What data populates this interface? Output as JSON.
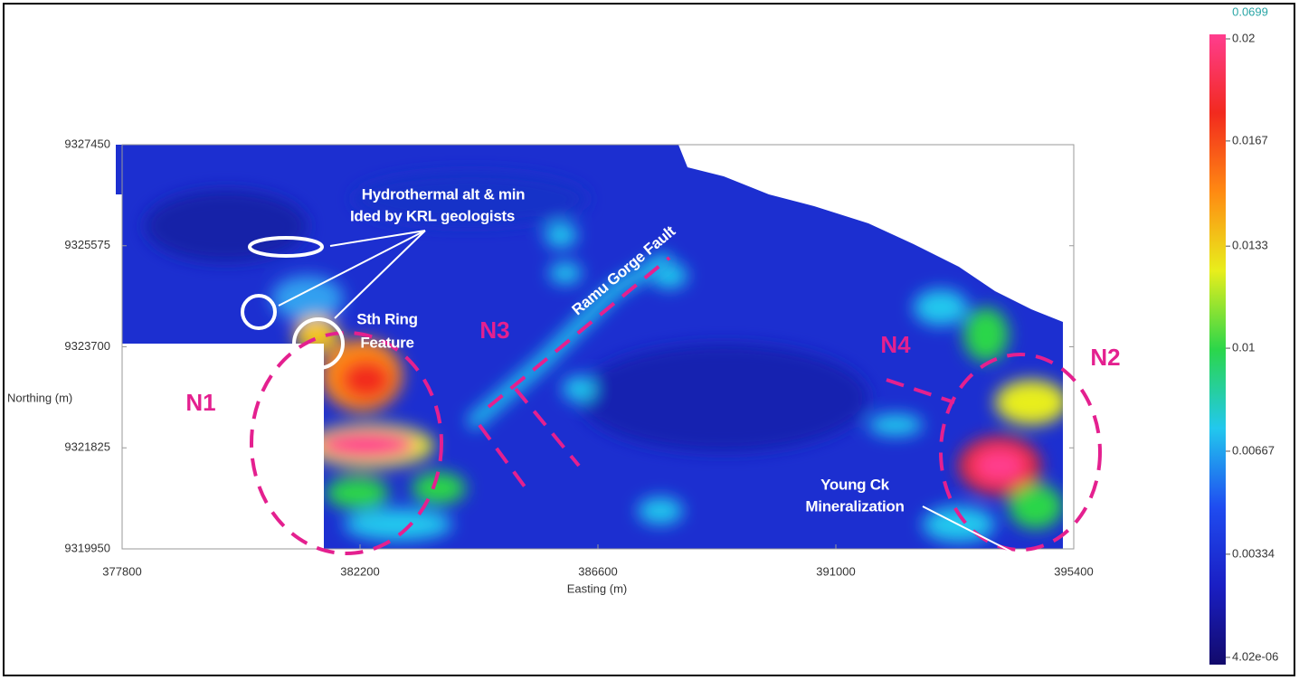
{
  "plot": {
    "xlabel": "Easting (m)",
    "ylabel": "Northing (m)",
    "xlim": [
      377800,
      395400
    ],
    "xticks": [
      377800,
      382200,
      386600,
      391000,
      395400
    ],
    "ylim": [
      9319950,
      9327450
    ],
    "yticks": [
      9319950,
      9321825,
      9323700,
      9325575,
      9327450
    ]
  },
  "colorbar": {
    "max": 0.0699,
    "lim": [
      4.02e-06,
      0.02
    ],
    "ticks": [
      {
        "value": 4.02e-06,
        "label": "4.02e-06"
      },
      0.00334,
      0.00667,
      0.01,
      0.0133,
      0.0167,
      0.02
    ],
    "colormap": [
      "#120a6b",
      "#1a1fc4",
      "#1f4cf0",
      "#22c8ee",
      "#2bd64a",
      "#e8ee1c",
      "#ff8a12",
      "#f22a1e",
      "#ff3d8e"
    ]
  },
  "annotations": {
    "hydrothermal": [
      "Hydrothermal alt & min",
      "Ided by KRL geologists"
    ],
    "ring": [
      "Sth Ring",
      "Feature"
    ],
    "fault": "Ramu Gorge Fault",
    "young": [
      "Young Ck",
      "Mineralization"
    ]
  },
  "zones": [
    "N1",
    "N2",
    "N3",
    "N4"
  ]
}
